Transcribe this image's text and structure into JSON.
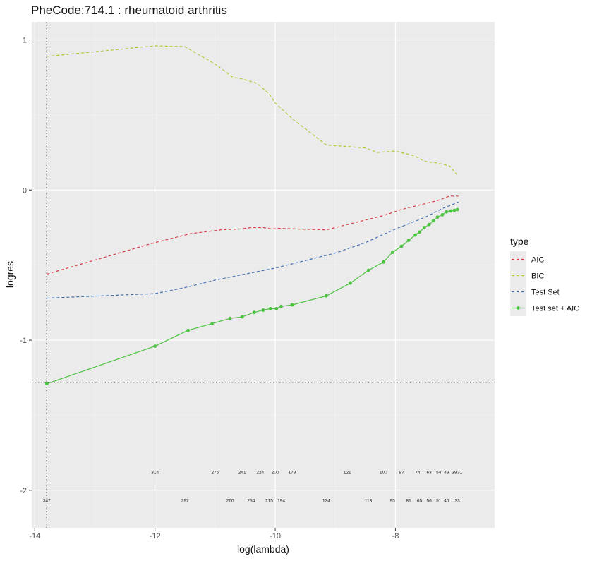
{
  "chart_data": {
    "type": "line",
    "title": "PheCode:714.1 :  rheumatoid arthritis",
    "xlabel": "log(lambda)",
    "ylabel": "logres",
    "xlim": [
      -14.05,
      -6.35
    ],
    "ylim": [
      -2.25,
      1.12
    ],
    "x_ticks": [
      -14,
      -12,
      -10,
      -8
    ],
    "x_tick_labels": [
      "-14",
      "-12",
      "-10",
      "-8"
    ],
    "y_ticks": [
      1,
      0,
      -1,
      -2
    ],
    "y_tick_labels": [
      "1",
      "0",
      "-1",
      "-2"
    ],
    "grid": true,
    "legend_title": "type",
    "legend_position": "right",
    "reference_lines": {
      "vline_x": -13.8,
      "hline_y": -1.28
    },
    "series": [
      {
        "name": "AIC",
        "color": "#d6404a",
        "linestyle": "dashed",
        "markers": false,
        "x": [
          -13.8,
          -12.0,
          -11.4,
          -10.9,
          -10.6,
          -10.4,
          -10.2,
          -10.05,
          -9.95,
          -9.6,
          -9.15,
          -8.8,
          -8.4,
          -8.2,
          -7.9,
          -7.6,
          -7.3,
          -7.1,
          -6.95
        ],
        "y": [
          -0.56,
          -0.35,
          -0.29,
          -0.265,
          -0.26,
          -0.25,
          -0.25,
          -0.26,
          -0.255,
          -0.26,
          -0.265,
          -0.23,
          -0.19,
          -0.17,
          -0.13,
          -0.1,
          -0.07,
          -0.04,
          -0.04
        ]
      },
      {
        "name": "BIC",
        "color": "#b5c637",
        "linestyle": "dashed",
        "markers": false,
        "x": [
          -13.8,
          -12.0,
          -11.5,
          -11.0,
          -10.7,
          -10.55,
          -10.3,
          -10.1,
          -10.0,
          -9.7,
          -9.15,
          -8.8,
          -8.5,
          -8.3,
          -8.0,
          -7.7,
          -7.5,
          -7.3,
          -7.1,
          -6.95
        ],
        "y": [
          0.89,
          0.96,
          0.955,
          0.84,
          0.75,
          0.74,
          0.71,
          0.64,
          0.58,
          0.47,
          0.3,
          0.29,
          0.28,
          0.25,
          0.26,
          0.23,
          0.19,
          0.18,
          0.16,
          0.09
        ]
      },
      {
        "name": "Test Set",
        "color": "#4470b3",
        "linestyle": "dashed",
        "markers": false,
        "x": [
          -13.8,
          -12.0,
          -11.5,
          -11.0,
          -10.5,
          -10.0,
          -9.5,
          -9.0,
          -8.5,
          -8.0,
          -7.5,
          -7.2,
          -6.95
        ],
        "y": [
          -0.72,
          -0.69,
          -0.65,
          -0.6,
          -0.56,
          -0.52,
          -0.47,
          -0.42,
          -0.35,
          -0.26,
          -0.18,
          -0.12,
          -0.08
        ]
      },
      {
        "name": "Test set + AIC",
        "color": "#4cc340",
        "linestyle": "solid",
        "markers": true,
        "x": [
          -13.8,
          -12.0,
          -11.45,
          -11.05,
          -10.75,
          -10.55,
          -10.35,
          -10.2,
          -10.08,
          -9.98,
          -9.9,
          -9.72,
          -9.15,
          -8.75,
          -8.45,
          -8.2,
          -8.05,
          -7.9,
          -7.78,
          -7.67,
          -7.6,
          -7.52,
          -7.44,
          -7.37,
          -7.3,
          -7.22,
          -7.15,
          -7.08,
          -7.02,
          -6.97
        ],
        "y": [
          -1.29,
          -1.04,
          -0.935,
          -0.89,
          -0.855,
          -0.845,
          -0.815,
          -0.8,
          -0.79,
          -0.79,
          -0.775,
          -0.765,
          -0.705,
          -0.62,
          -0.535,
          -0.48,
          -0.415,
          -0.375,
          -0.335,
          -0.3,
          -0.28,
          -0.25,
          -0.23,
          -0.205,
          -0.18,
          -0.165,
          -0.145,
          -0.14,
          -0.135,
          -0.13
        ]
      }
    ],
    "count_annotations": [
      {
        "x": -13.8,
        "row": 2,
        "text": "347"
      },
      {
        "x": -12.0,
        "row": 1,
        "text": "314"
      },
      {
        "x": -11.5,
        "row": 2,
        "text": "297"
      },
      {
        "x": -11.0,
        "row": 1,
        "text": "275"
      },
      {
        "x": -10.75,
        "row": 2,
        "text": "260"
      },
      {
        "x": -10.55,
        "row": 1,
        "text": "241"
      },
      {
        "x": -10.4,
        "row": 2,
        "text": "234"
      },
      {
        "x": -10.25,
        "row": 1,
        "text": "224"
      },
      {
        "x": -10.1,
        "row": 2,
        "text": "215"
      },
      {
        "x": -10.0,
        "row": 1,
        "text": "200"
      },
      {
        "x": -9.9,
        "row": 2,
        "text": "194"
      },
      {
        "x": -9.72,
        "row": 1,
        "text": "179"
      },
      {
        "x": -9.15,
        "row": 2,
        "text": "134"
      },
      {
        "x": -8.8,
        "row": 1,
        "text": "121"
      },
      {
        "x": -8.45,
        "row": 2,
        "text": "113"
      },
      {
        "x": -8.2,
        "row": 1,
        "text": "100"
      },
      {
        "x": -8.05,
        "row": 2,
        "text": "95"
      },
      {
        "x": -7.9,
        "row": 1,
        "text": "87"
      },
      {
        "x": -7.78,
        "row": 2,
        "text": "81"
      },
      {
        "x": -7.63,
        "row": 1,
        "text": "74"
      },
      {
        "x": -7.6,
        "row": 2,
        "text": "65"
      },
      {
        "x": -7.44,
        "row": 1,
        "text": "63"
      },
      {
        "x": -7.44,
        "row": 2,
        "text": "56"
      },
      {
        "x": -7.28,
        "row": 1,
        "text": "54"
      },
      {
        "x": -7.28,
        "row": 2,
        "text": "51"
      },
      {
        "x": -7.15,
        "row": 1,
        "text": "49"
      },
      {
        "x": -7.15,
        "row": 2,
        "text": "45"
      },
      {
        "x": -7.02,
        "row": 1,
        "text": "39"
      },
      {
        "x": -6.97,
        "row": 2,
        "text": "33"
      },
      {
        "x": -6.93,
        "row": 1,
        "text": "31"
      }
    ]
  }
}
